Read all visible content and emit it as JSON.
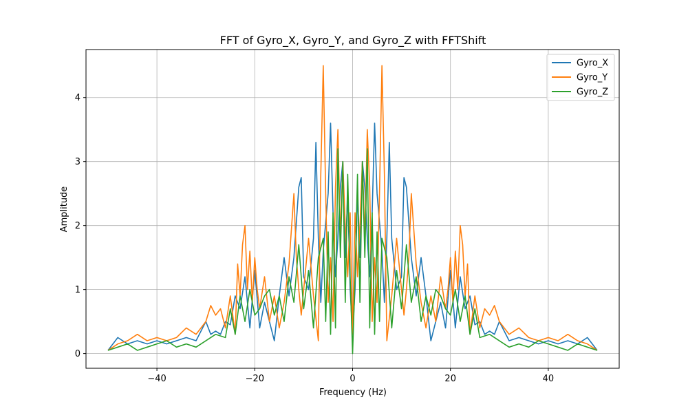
{
  "chart_data": {
    "type": "line",
    "title": "FFT of Gyro_X, Gyro_Y, and Gyro_Z with FFTShift",
    "xlabel": "Frequency (Hz)",
    "ylabel": "Amplitude",
    "xlim": [
      -54.5,
      54.5
    ],
    "ylim": [
      -0.23,
      4.75
    ],
    "xticks": [
      -40,
      -20,
      0,
      20,
      40
    ],
    "yticks": [
      0,
      1,
      2,
      3,
      4
    ],
    "grid": true,
    "legend": "top-right",
    "series": [
      {
        "name": "Gyro_X",
        "color": "#1f77b4",
        "x": [
          -50,
          -48,
          -46,
          -44,
          -42,
          -40,
          -38,
          -36,
          -34,
          -32,
          -30,
          -29,
          -28,
          -27,
          -26,
          -25,
          -24,
          -23,
          -22,
          -21,
          -20,
          -19,
          -18,
          -17,
          -16,
          -15,
          -14,
          -13,
          -12,
          -11,
          -10.5,
          -10,
          -9,
          -8,
          -7.5,
          -7,
          -6.5,
          -6,
          -5,
          -4.5,
          -4,
          -3.5,
          -3,
          -2.5,
          -2,
          -1.5,
          -1,
          -0.5,
          0,
          0.5,
          1,
          1.5,
          2,
          2.5,
          3,
          3.5,
          4,
          4.5,
          5,
          6,
          6.5,
          7,
          7.5,
          8,
          9,
          10,
          10.5,
          11,
          12,
          13,
          14,
          15,
          16,
          17,
          18,
          19,
          20,
          21,
          22,
          23,
          24,
          25,
          26,
          27,
          28,
          29,
          30,
          32,
          34,
          36,
          38,
          40,
          42,
          44,
          46,
          48,
          50
        ],
        "y": [
          0.05,
          0.25,
          0.15,
          0.2,
          0.15,
          0.2,
          0.15,
          0.2,
          0.25,
          0.2,
          0.5,
          0.3,
          0.35,
          0.3,
          0.5,
          0.45,
          0.9,
          0.7,
          1.2,
          0.4,
          1.3,
          0.4,
          0.8,
          0.5,
          0.2,
          0.9,
          1.5,
          0.9,
          1.5,
          2.6,
          2.75,
          1.2,
          1.0,
          1.8,
          3.3,
          1.8,
          0.8,
          1.6,
          2.5,
          3.6,
          2.2,
          1.2,
          1.8,
          2.6,
          3.0,
          1.5,
          2.5,
          1.0,
          0.3,
          1.0,
          2.5,
          1.5,
          3.0,
          2.6,
          1.8,
          1.2,
          2.2,
          3.6,
          2.5,
          1.6,
          0.8,
          1.8,
          3.3,
          1.8,
          1.0,
          1.2,
          2.75,
          2.6,
          1.5,
          0.9,
          1.5,
          0.9,
          0.2,
          0.5,
          0.8,
          0.4,
          1.3,
          0.4,
          1.2,
          0.7,
          0.9,
          0.45,
          0.5,
          0.3,
          0.35,
          0.3,
          0.5,
          0.2,
          0.25,
          0.2,
          0.15,
          0.2,
          0.15,
          0.2,
          0.15,
          0.25,
          0.05
        ]
      },
      {
        "name": "Gyro_Y",
        "color": "#ff7f0e",
        "x": [
          -50,
          -48,
          -46,
          -44,
          -42,
          -40,
          -38,
          -36,
          -34,
          -32,
          -30,
          -29,
          -28,
          -27,
          -26,
          -25,
          -24,
          -23.5,
          -23,
          -22.5,
          -22,
          -21.5,
          -21,
          -20.5,
          -20,
          -19.5,
          -19,
          -18,
          -17,
          -16,
          -15,
          -14,
          -13,
          -12,
          -11.5,
          -11,
          -10.5,
          -10,
          -9,
          -8,
          -7,
          -6.5,
          -6,
          -5.5,
          -5,
          -4.5,
          -4,
          -3.5,
          -3,
          -2.5,
          -2,
          -1.5,
          -1,
          -0.5,
          0,
          0.5,
          1,
          1.5,
          2,
          2.5,
          3,
          3.5,
          4,
          4.5,
          5,
          5.5,
          6,
          6.5,
          7,
          8,
          9,
          10,
          10.5,
          11,
          11.5,
          12,
          13,
          14,
          15,
          16,
          17,
          18,
          19,
          19.5,
          20,
          20.5,
          21,
          21.5,
          22,
          22.5,
          23,
          23.5,
          24,
          25,
          26,
          27,
          28,
          29,
          30,
          32,
          34,
          36,
          38,
          40,
          42,
          44,
          46,
          48,
          50
        ],
        "y": [
          0.05,
          0.15,
          0.2,
          0.3,
          0.2,
          0.25,
          0.2,
          0.25,
          0.4,
          0.3,
          0.5,
          0.75,
          0.6,
          0.7,
          0.4,
          0.9,
          0.3,
          1.4,
          0.9,
          1.7,
          2.0,
          1.0,
          1.6,
          0.8,
          1.5,
          1.0,
          0.7,
          1.2,
          0.5,
          0.9,
          0.4,
          0.8,
          1.4,
          2.5,
          1.5,
          1.0,
          0.6,
          1.0,
          1.8,
          0.9,
          0.2,
          2.8,
          4.5,
          2.5,
          0.8,
          1.5,
          0.5,
          2.6,
          3.5,
          1.8,
          3.0,
          2.0,
          1.2,
          2.2,
          0.3,
          2.2,
          1.2,
          2.0,
          3.0,
          1.8,
          3.5,
          2.6,
          0.5,
          1.5,
          0.8,
          2.5,
          4.5,
          2.8,
          0.2,
          0.9,
          1.8,
          1.0,
          0.6,
          1.0,
          1.5,
          2.5,
          1.4,
          0.8,
          0.4,
          0.9,
          0.5,
          1.2,
          0.7,
          1.0,
          1.5,
          0.8,
          1.6,
          1.0,
          2.0,
          1.7,
          0.9,
          1.4,
          0.3,
          0.9,
          0.4,
          0.7,
          0.6,
          0.75,
          0.5,
          0.3,
          0.4,
          0.25,
          0.2,
          0.25,
          0.2,
          0.3,
          0.2,
          0.15,
          0.05
        ]
      },
      {
        "name": "Gyro_Z",
        "color": "#2ca02c",
        "x": [
          -50,
          -48,
          -46,
          -44,
          -42,
          -40,
          -38,
          -36,
          -34,
          -32,
          -30,
          -28,
          -26,
          -25,
          -24,
          -23,
          -22,
          -21,
          -20,
          -19,
          -18,
          -17,
          -16,
          -15,
          -14,
          -13,
          -12,
          -11,
          -10,
          -9,
          -8,
          -7,
          -6,
          -5.5,
          -5,
          -4.5,
          -4,
          -3.5,
          -3,
          -2.5,
          -2,
          -1.5,
          -1,
          -0.5,
          0,
          0.5,
          1,
          1.5,
          2,
          2.5,
          3,
          3.5,
          4,
          4.5,
          5,
          5.5,
          6,
          7,
          8,
          9,
          10,
          11,
          12,
          13,
          14,
          15,
          16,
          17,
          18,
          19,
          20,
          21,
          22,
          23,
          24,
          25,
          26,
          28,
          30,
          32,
          34,
          36,
          38,
          40,
          42,
          44,
          46,
          48,
          50
        ],
        "y": [
          0.05,
          0.1,
          0.15,
          0.05,
          0.1,
          0.15,
          0.2,
          0.1,
          0.15,
          0.1,
          0.2,
          0.3,
          0.25,
          0.7,
          0.3,
          0.9,
          0.5,
          1.0,
          0.6,
          0.7,
          0.9,
          1.0,
          0.6,
          0.9,
          0.5,
          1.2,
          0.8,
          1.7,
          0.7,
          1.3,
          0.4,
          1.5,
          1.8,
          0.5,
          1.9,
          0.3,
          2.2,
          0.4,
          3.2,
          1.5,
          3.0,
          0.8,
          2.8,
          1.2,
          0.0,
          1.2,
          2.8,
          0.8,
          3.0,
          1.5,
          3.2,
          0.4,
          2.2,
          0.3,
          1.9,
          0.5,
          1.8,
          1.5,
          0.4,
          1.3,
          0.7,
          1.7,
          0.8,
          1.2,
          0.5,
          0.9,
          0.6,
          1.0,
          0.9,
          0.7,
          0.6,
          1.0,
          0.5,
          0.9,
          0.3,
          0.7,
          0.25,
          0.3,
          0.2,
          0.1,
          0.15,
          0.1,
          0.2,
          0.15,
          0.1,
          0.05,
          0.15,
          0.1,
          0.05
        ]
      }
    ]
  }
}
